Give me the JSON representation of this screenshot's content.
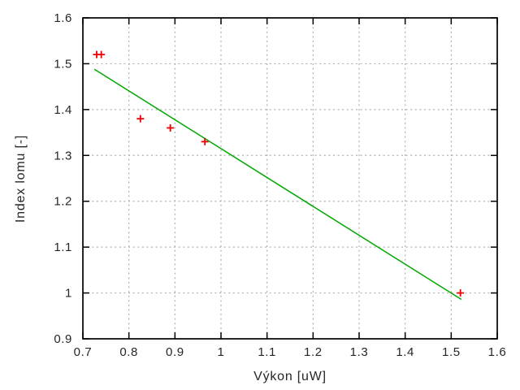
{
  "chart_data": {
    "type": "scatter",
    "title": "",
    "xlabel": "Výkon [uW]",
    "ylabel": "Index lomu [-]",
    "xlim": [
      0.7,
      1.6
    ],
    "ylim": [
      0.9,
      1.6
    ],
    "grid": true,
    "legend_position": "none",
    "xticks": {
      "values": [
        0.7,
        0.8,
        0.9,
        1.0,
        1.1,
        1.2,
        1.3,
        1.4,
        1.5,
        1.6
      ],
      "labels": [
        "0.7",
        "0.8",
        "0.9",
        "1",
        "1.1",
        "1.2",
        "1.3",
        "1.4",
        "1.5",
        "1.6"
      ]
    },
    "yticks": {
      "values": [
        0.9,
        1.0,
        1.1,
        1.2,
        1.3,
        1.4,
        1.5,
        1.6
      ],
      "labels": [
        "0.9",
        "1",
        "1.1",
        "1.2",
        "1.3",
        "1.4",
        "1.5",
        "1.6"
      ]
    },
    "series": [
      {
        "name": "measured-points",
        "type": "points",
        "marker": "plus",
        "marker_size": 9,
        "color": "#ee0000",
        "points": [
          [
            0.73,
            1.52
          ],
          [
            0.74,
            1.52
          ],
          [
            0.825,
            1.38
          ],
          [
            0.89,
            1.36
          ],
          [
            0.965,
            1.33
          ],
          [
            1.52,
            1.0
          ]
        ]
      },
      {
        "name": "linear-fit",
        "type": "line",
        "color": "#00a800",
        "points": [
          [
            0.725,
            1.488
          ],
          [
            1.522,
            0.986
          ]
        ]
      }
    ],
    "colors": {
      "background": "#ffffff",
      "grid": "#b0b0b0",
      "border": "#000000",
      "text": "#262626"
    }
  }
}
